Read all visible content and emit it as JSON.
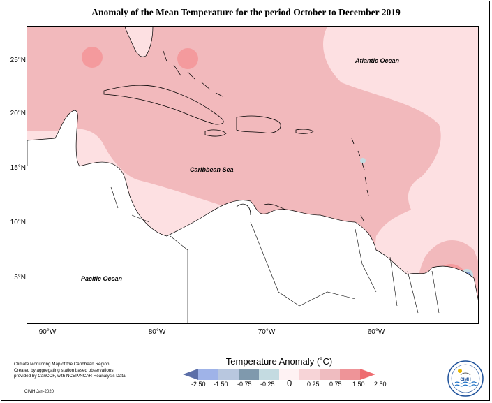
{
  "title": "Anomaly of the Mean Temperature for the period October to December 2019",
  "map": {
    "labels": {
      "atlantic": "Atlantic Ocean",
      "caribbean": "Caribbean Sea",
      "pacific": "Pacific Ocean"
    },
    "lat_ticks": [
      "25°N",
      "20°N",
      "15°N",
      "10°N",
      "5°N"
    ],
    "lon_ticks": [
      "90°W",
      "80°W",
      "70°W",
      "60°W"
    ],
    "colors": {
      "anom_0_25": "#fde0e2",
      "anom_0_75": "#f2b9bc",
      "anom_1_5": "#f49a9d",
      "anom_2_5": "#ee6c70",
      "anom_neg": "#7f9bd1",
      "land": "#ffffff"
    }
  },
  "legend": {
    "title": "Temperature Anomaly (˚C)",
    "ticks": [
      "-2.50",
      "-1.50",
      "-0.75",
      "-0.25",
      "0",
      "0.25",
      "0.75",
      "1.50",
      "2.50"
    ],
    "colors": [
      "#5c6fa8",
      "#9fb3e8",
      "#b8c7df",
      "#c4dbe1",
      "#fef2f3",
      "#f7d4d7",
      "#efbcc0",
      "#ee9498",
      "#ee6c70"
    ]
  },
  "credit": {
    "line1": "Climate Monitoring Map of the Caribbean Region.",
    "line2": "Created by aggregating station based observations,",
    "line3": "provided by CariCOF, with NCEP/NCAR Reanalysis Data.",
    "date": "CIMH  Jan-2020"
  },
  "logo": {
    "name": "CIMH",
    "icon": "cimh-logo-icon"
  }
}
